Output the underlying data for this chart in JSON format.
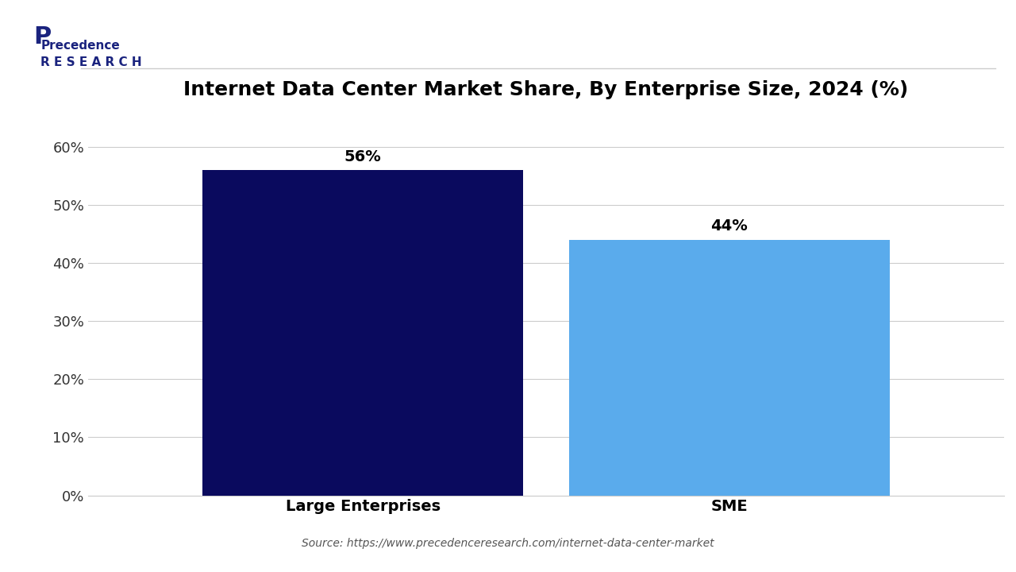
{
  "title": "Internet Data Center Market Share, By Enterprise Size, 2024 (%)",
  "categories": [
    "Large Enterprises",
    "SME"
  ],
  "values": [
    56,
    44
  ],
  "bar_colors": [
    "#0a0a5e",
    "#5aabec"
  ],
  "bar_width": 0.35,
  "yticks": [
    0,
    10,
    20,
    30,
    40,
    50,
    60
  ],
  "ytick_labels": [
    "0%",
    "10%",
    "20%",
    "30%",
    "40%",
    "50%",
    "60%"
  ],
  "ylim": [
    0,
    65
  ],
  "value_labels": [
    "56%",
    "44%"
  ],
  "source_text": "Source: https://www.precedenceresearch.com/internet-data-center-market",
  "background_color": "#ffffff",
  "title_fontsize": 18,
  "tick_fontsize": 13,
  "label_fontsize": 14,
  "annotation_fontsize": 14,
  "source_fontsize": 10
}
